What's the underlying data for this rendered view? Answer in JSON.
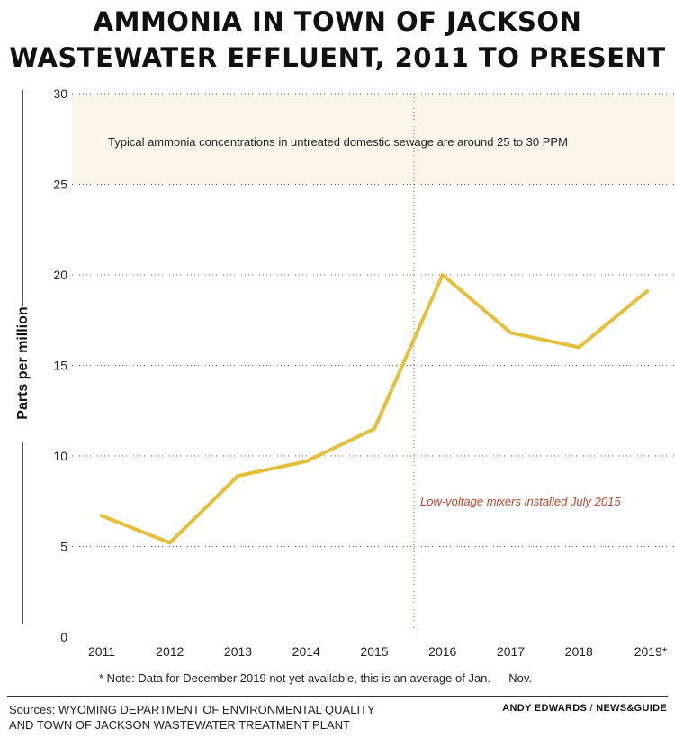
{
  "header": {
    "title_line1": "AMMONIA IN TOWN OF JACKSON",
    "title_line2": "WASTEWATER EFFLUENT, 2011 TO PRESENT"
  },
  "chart_data": {
    "type": "line",
    "ylabel": "Parts per million",
    "ylim": [
      0,
      30
    ],
    "yticks": [
      0,
      5,
      10,
      15,
      20,
      25,
      30
    ],
    "categories": [
      "2011",
      "2012",
      "2013",
      "2014",
      "2015",
      "2016",
      "2017",
      "2018",
      "2019*"
    ],
    "series": [
      {
        "values": [
          6.7,
          5.2,
          8.9,
          9.7,
          11.5,
          20.0,
          16.8,
          16.0,
          19.1
        ],
        "color": "#e3bf3c"
      }
    ],
    "grid": "horizontal dotted",
    "band": {
      "range": [
        25,
        30
      ],
      "color": "#fbf5ec",
      "label": "Typical ammonia concentrations in untreated domestic sewage are around 25 to 30 PPM"
    },
    "annotation": {
      "x": "July 2015",
      "label": "Low-voltage mixers installed July 2015",
      "color": "#b5472b"
    },
    "note": "* Note: Data for December 2019 not yet available, this is an average of Jan. — Nov."
  },
  "footer": {
    "sources_line1": "Sources: WYOMING DEPARTMENT OF ENVIRONMENTAL QUALITY",
    "sources_line2": "AND TOWN OF JACKSON WASTEWATER TREATMENT PLANT",
    "credit_author": "ANDY EDWARDS",
    "credit_sep": " / ",
    "credit_outlet": "NEWS&GUIDE"
  }
}
